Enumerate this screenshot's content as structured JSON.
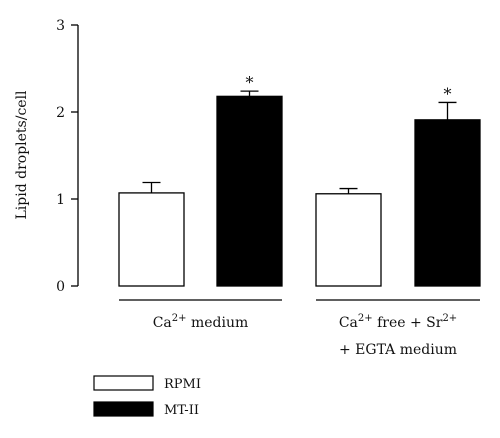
{
  "chart_data": {
    "type": "bar",
    "title": "",
    "xlabel": "",
    "ylabel": "Lipid droplets/cell",
    "ylim": [
      0,
      3
    ],
    "yticks": [
      "0",
      "1",
      "2",
      "3"
    ],
    "grid": false,
    "groups": [
      {
        "label_lines": [
          "Ca2+ medium"
        ],
        "label_rich": [
          {
            "base": "Ca",
            "sup": "2+",
            "tail": " medium"
          }
        ]
      },
      {
        "label_lines": [
          "Ca2+ free + Sr2+",
          "+ EGTA medium"
        ],
        "label_rich": [
          {
            "base": "Ca",
            "sup": "2+",
            "tail": " free + Sr",
            "sup2": "2+"
          },
          {
            "base": "+ EGTA medium"
          }
        ]
      }
    ],
    "series": [
      {
        "name": "RPMI",
        "color": "#ffffff",
        "values": [
          1.07,
          1.06
        ],
        "errors": [
          0.12,
          0.06
        ],
        "significant": [
          false,
          false
        ]
      },
      {
        "name": "MT-II",
        "color": "#000000",
        "values": [
          2.18,
          1.91
        ],
        "errors": [
          0.06,
          0.2
        ],
        "significant": [
          true,
          true
        ]
      }
    ],
    "significance_marker": "*",
    "legend_position": "bottom-left"
  }
}
